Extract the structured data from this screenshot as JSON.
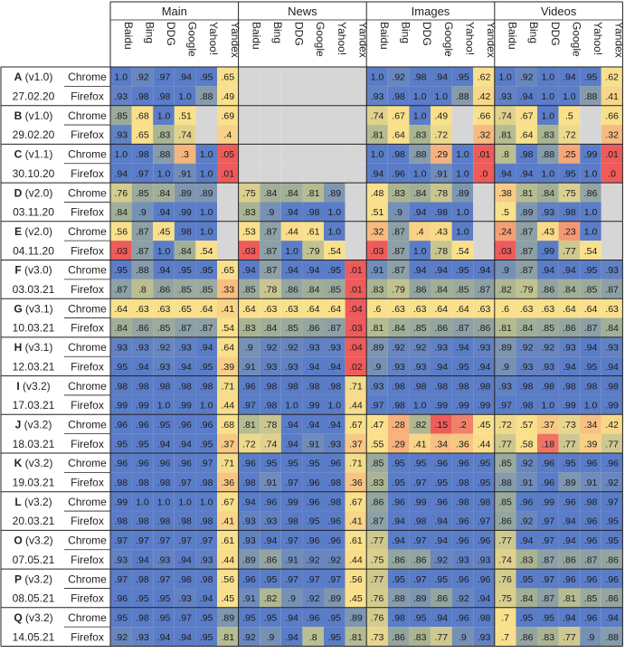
{
  "chart_data": {
    "type": "heatmap",
    "groups": [
      "Main",
      "News",
      "Images",
      "Videos"
    ],
    "engines": [
      "Baidu",
      "Bing",
      "DDG",
      "Google",
      "Yahoo!",
      "Yandex"
    ],
    "rows": [
      {
        "label": "A (v1.0)",
        "date": "27.02.20",
        "browser": "Chrome",
        "values": [
          "1.0",
          ".92",
          ".97",
          ".94",
          ".95",
          ".65",
          "",
          "",
          "",
          "",
          "",
          "",
          "1.0",
          ".92",
          ".98",
          ".94",
          ".95",
          ".62",
          "1.0",
          ".92",
          "1.0",
          ".94",
          ".95",
          ".62"
        ]
      },
      {
        "label": "",
        "date": "",
        "browser": "Firefox",
        "values": [
          ".93",
          ".98",
          ".98",
          "1.0",
          ".88",
          ".49",
          "",
          "",
          "",
          "",
          "",
          "",
          ".93",
          ".98",
          "1.0",
          "1.0",
          ".88",
          ".42",
          ".93",
          ".94",
          "1.0",
          "1.0",
          ".88",
          ".41"
        ]
      },
      {
        "label": "B (v1.0)",
        "date": "29.02.20",
        "browser": "Chrome",
        "values": [
          ".85",
          ".68",
          "1.0",
          ".51",
          "",
          ".69",
          "",
          "",
          "",
          "",
          "",
          "",
          ".74",
          ".67",
          "1.0",
          ".49",
          "",
          ".66",
          ".74",
          ".67",
          "1.0",
          ".5",
          "",
          ".66"
        ]
      },
      {
        "label": "",
        "date": "",
        "browser": "Firefox",
        "values": [
          ".93",
          ".65",
          ".83",
          ".74",
          "",
          ".4",
          "",
          "",
          "",
          "",
          "",
          "",
          ".81",
          ".64",
          ".83",
          ".72",
          "",
          ".32",
          ".81",
          ".64",
          ".83",
          ".72",
          "",
          ".32"
        ]
      },
      {
        "label": "C (v1.1)",
        "date": "30.10.20",
        "browser": "Chrome",
        "values": [
          "1.0",
          ".98",
          ".88",
          ".3",
          "1.0",
          ".05",
          "",
          "",
          "",
          "",
          "",
          "",
          "1.0",
          ".98",
          ".88",
          ".29",
          "1.0",
          ".01",
          ".8",
          ".98",
          ".88",
          ".25",
          ".99",
          ".01"
        ]
      },
      {
        "label": "",
        "date": "",
        "browser": "Firefox",
        "values": [
          ".94",
          ".97",
          "1.0",
          ".91",
          "1.0",
          ".01",
          "",
          "",
          "",
          "",
          "",
          "",
          ".94",
          ".96",
          "1.0",
          ".91",
          "1.0",
          ".0",
          ".94",
          ".94",
          "1.0",
          ".95",
          "1.0",
          ".0"
        ]
      },
      {
        "label": "D (v2.0)",
        "date": "03.11.20",
        "browser": "Chrome",
        "values": [
          ".76",
          ".85",
          ".84",
          ".89",
          ".89",
          "",
          ".75",
          ".84",
          ".84",
          ".81",
          ".89",
          "",
          ".48",
          ".83",
          ".84",
          ".78",
          ".89",
          "",
          ".38",
          ".81",
          ".84",
          ".75",
          ".86",
          ""
        ]
      },
      {
        "label": "",
        "date": "",
        "browser": "Firefox",
        "values": [
          ".84",
          ".9",
          ".94",
          ".99",
          "1.0",
          "",
          ".83",
          ".9",
          ".94",
          ".98",
          "1.0",
          "",
          ".51",
          ".9",
          ".94",
          ".98",
          "1.0",
          "",
          ".5",
          ".89",
          ".93",
          ".98",
          "1.0",
          ""
        ]
      },
      {
        "label": "E (v2.0)",
        "date": "04.11.20",
        "browser": "Chrome",
        "values": [
          ".56",
          ".87",
          ".45",
          ".98",
          "1.0",
          "",
          ".53",
          ".87",
          ".44",
          ".61",
          "1.0",
          "",
          ".32",
          ".87",
          ".4",
          ".43",
          "1.0",
          "",
          ".24",
          ".87",
          ".43",
          ".23",
          "1.0",
          ""
        ]
      },
      {
        "label": "",
        "date": "",
        "browser": "Firefox",
        "values": [
          ".03",
          ".87",
          "1.0",
          ".84",
          ".54",
          "",
          ".03",
          ".87",
          "1.0",
          ".79",
          ".54",
          "",
          ".03",
          ".87",
          "1.0",
          ".78",
          ".54",
          "",
          ".03",
          ".87",
          ".99",
          ".77",
          ".54",
          ""
        ]
      },
      {
        "label": "F (v3.0)",
        "date": "03.03.21",
        "browser": "Chrome",
        "values": [
          ".95",
          ".88",
          ".94",
          ".95",
          ".95",
          ".65",
          ".94",
          ".87",
          ".94",
          ".94",
          ".95",
          ".01",
          ".91",
          ".87",
          ".94",
          ".94",
          ".95",
          ".94",
          ".9",
          ".87",
          ".94",
          ".94",
          ".95",
          ".93"
        ]
      },
      {
        "label": "",
        "date": "",
        "browser": "Firefox",
        "values": [
          ".87",
          ".8",
          ".86",
          ".85",
          ".85",
          ".33",
          ".85",
          ".78",
          ".86",
          ".84",
          ".85",
          ".01",
          ".83",
          ".79",
          ".86",
          ".84",
          ".85",
          ".87",
          ".82",
          ".79",
          ".86",
          ".84",
          ".85",
          ".87"
        ]
      },
      {
        "label": "G (v3.1)",
        "date": "10.03.21",
        "browser": "Chrome",
        "values": [
          ".64",
          ".63",
          ".63",
          ".65",
          ".64",
          ".41",
          ".64",
          ".63",
          ".63",
          ".64",
          ".64",
          ".04",
          ".6",
          ".63",
          ".63",
          ".64",
          ".64",
          ".63",
          ".6",
          ".63",
          ".63",
          ".64",
          ".64",
          ".63"
        ]
      },
      {
        "label": "",
        "date": "",
        "browser": "Firefox",
        "values": [
          ".84",
          ".86",
          ".85",
          ".87",
          ".87",
          ".54",
          ".83",
          ".84",
          ".85",
          ".86",
          ".87",
          ".03",
          ".81",
          ".84",
          ".85",
          ".86",
          ".87",
          ".86",
          ".81",
          ".84",
          ".85",
          ".86",
          ".87",
          ".84"
        ]
      },
      {
        "label": "H (v3.1)",
        "date": "12.03.21",
        "browser": "Chrome",
        "values": [
          ".93",
          ".93",
          ".92",
          ".93",
          ".94",
          ".64",
          ".9",
          ".92",
          ".92",
          ".93",
          ".93",
          ".04",
          ".89",
          ".92",
          ".92",
          ".93",
          ".94",
          ".93",
          ".89",
          ".92",
          ".92",
          ".93",
          ".94",
          ".93"
        ]
      },
      {
        "label": "",
        "date": "",
        "browser": "Firefox",
        "values": [
          ".95",
          ".94",
          ".93",
          ".94",
          ".95",
          ".39",
          ".91",
          ".93",
          ".93",
          ".94",
          ".94",
          ".02",
          ".9",
          ".93",
          ".93",
          ".94",
          ".95",
          ".94",
          ".9",
          ".93",
          ".93",
          ".94",
          ".95",
          ".94"
        ]
      },
      {
        "label": "I (v3.2)",
        "date": "17.03.21",
        "browser": "Chrome",
        "values": [
          ".98",
          ".98",
          ".98",
          ".98",
          ".98",
          ".71",
          ".96",
          ".98",
          ".98",
          ".98",
          ".98",
          ".71",
          ".93",
          ".98",
          ".98",
          ".98",
          ".98",
          ".98",
          ".93",
          ".98",
          ".98",
          ".98",
          ".98",
          ".98"
        ]
      },
      {
        "label": "",
        "date": "",
        "browser": "Firefox",
        "values": [
          ".99",
          ".99",
          "1.0",
          ".99",
          "1.0",
          ".44",
          ".97",
          ".98",
          "1.0",
          ".99",
          "1.0",
          ".44",
          ".97",
          ".98",
          "1.0",
          ".99",
          ".99",
          ".99",
          ".97",
          ".98",
          "1.0",
          ".99",
          "1.0",
          ".99"
        ]
      },
      {
        "label": "J (v3.2)",
        "date": "18.03.21",
        "browser": "Chrome",
        "values": [
          ".96",
          ".96",
          ".95",
          ".96",
          ".96",
          ".68",
          ".81",
          ".78",
          ".94",
          ".94",
          ".94",
          ".67",
          ".47",
          ".28",
          ".82",
          ".15",
          ".2",
          ".45",
          ".72",
          ".57",
          ".37",
          ".73",
          ".34",
          ".42"
        ]
      },
      {
        "label": "",
        "date": "",
        "browser": "Firefox",
        "values": [
          ".95",
          ".95",
          ".94",
          ".94",
          ".95",
          ".37",
          ".72",
          ".74",
          ".94",
          ".91",
          ".93",
          ".37",
          ".55",
          ".29",
          ".41",
          ".34",
          ".36",
          ".44",
          ".77",
          ".58",
          ".18",
          ".77",
          ".39",
          ".77"
        ]
      },
      {
        "label": "K (v3.2)",
        "date": "19.03.21",
        "browser": "Chrome",
        "values": [
          ".96",
          ".96",
          ".96",
          ".96",
          ".97",
          ".71",
          ".96",
          ".95",
          ".95",
          ".95",
          ".96",
          ".71",
          ".85",
          ".95",
          ".95",
          ".96",
          ".96",
          ".95",
          ".85",
          ".92",
          ".96",
          ".95",
          ".96",
          ".96"
        ]
      },
      {
        "label": "",
        "date": "",
        "browser": "Firefox",
        "values": [
          ".98",
          ".98",
          ".98",
          ".97",
          ".98",
          ".36",
          ".98",
          ".91",
          ".97",
          ".96",
          ".98",
          ".36",
          ".83",
          ".95",
          ".97",
          ".95",
          ".98",
          ".95",
          ".88",
          ".91",
          ".96",
          ".89",
          ".91",
          ".92"
        ]
      },
      {
        "label": "L (v3.2)",
        "date": "20.03.21",
        "browser": "Chrome",
        "values": [
          ".99",
          "1.0",
          "1.0",
          "1.0",
          "1.0",
          ".67",
          ".94",
          ".96",
          ".99",
          ".96",
          ".98",
          ".67",
          ".86",
          ".96",
          ".99",
          ".96",
          ".98",
          ".98",
          ".85",
          ".96",
          ".99",
          ".96",
          ".98",
          ".97"
        ]
      },
      {
        "label": "",
        "date": "",
        "browser": "Firefox",
        "values": [
          ".98",
          ".98",
          ".98",
          ".98",
          ".98",
          ".41",
          ".93",
          ".93",
          ".98",
          ".95",
          ".96",
          ".41",
          ".87",
          ".94",
          ".98",
          ".94",
          ".96",
          ".97",
          ".86",
          ".92",
          ".97",
          ".94",
          ".96",
          ".95"
        ]
      },
      {
        "label": "O (v3.2)",
        "date": "07.05.21",
        "browser": "Chrome",
        "values": [
          ".97",
          ".97",
          ".97",
          ".97",
          ".97",
          ".61",
          ".93",
          ".94",
          ".97",
          ".96",
          ".96",
          ".61",
          ".77",
          ".94",
          ".97",
          ".94",
          ".96",
          ".96",
          ".77",
          ".94",
          ".97",
          ".94",
          ".96",
          ".95"
        ]
      },
      {
        "label": "",
        "date": "",
        "browser": "Firefox",
        "values": [
          ".93",
          ".94",
          ".93",
          ".94",
          ".93",
          ".44",
          ".89",
          ".86",
          ".91",
          ".92",
          ".92",
          ".44",
          ".75",
          ".86",
          ".86",
          ".92",
          ".93",
          ".93",
          ".74",
          ".83",
          ".87",
          ".86",
          ".87",
          ".86"
        ]
      },
      {
        "label": "P (v3.2)",
        "date": "08.05.21",
        "browser": "Chrome",
        "values": [
          ".97",
          ".98",
          ".97",
          ".98",
          ".98",
          ".56",
          ".96",
          ".95",
          ".97",
          ".97",
          ".97",
          ".56",
          ".77",
          ".95",
          ".97",
          ".95",
          ".96",
          ".96",
          ".76",
          ".95",
          ".97",
          ".96",
          ".96",
          ".96"
        ]
      },
      {
        "label": "",
        "date": "",
        "browser": "Firefox",
        "values": [
          ".96",
          ".95",
          ".95",
          ".93",
          ".94",
          ".45",
          ".91",
          ".82",
          ".9",
          ".92",
          ".89",
          ".45",
          ".76",
          ".88",
          ".89",
          ".86",
          ".92",
          ".94",
          ".75",
          ".84",
          ".87",
          ".81",
          ".85",
          ".86"
        ]
      },
      {
        "label": "Q (v3.2)",
        "date": "14.05.21",
        "browser": "Chrome",
        "values": [
          ".95",
          ".98",
          ".95",
          ".97",
          ".95",
          ".89",
          ".95",
          ".95",
          ".94",
          ".96",
          ".95",
          ".89",
          ".76",
          ".98",
          ".95",
          ".94",
          ".96",
          ".98",
          ".7",
          ".95",
          ".95",
          ".94",
          ".96",
          ".94"
        ]
      },
      {
        "label": "",
        "date": "",
        "browser": "Firefox",
        "values": [
          ".92",
          ".93",
          ".94",
          ".94",
          ".95",
          ".81",
          ".92",
          ".9",
          ".94",
          ".8",
          ".95",
          ".81",
          ".73",
          ".86",
          ".83",
          ".77",
          ".9",
          ".93",
          ".7",
          ".86",
          ".83",
          ".77",
          ".9",
          ".88"
        ]
      }
    ],
    "colors": {
      "low": "#ee5b5b",
      "orange": "#f4a77a",
      "yellow": "#f9e08c",
      "mid": "#a9b493",
      "high": "#5b7dc8",
      "empty": "#d6d6d6",
      "grid": "#222222"
    }
  }
}
